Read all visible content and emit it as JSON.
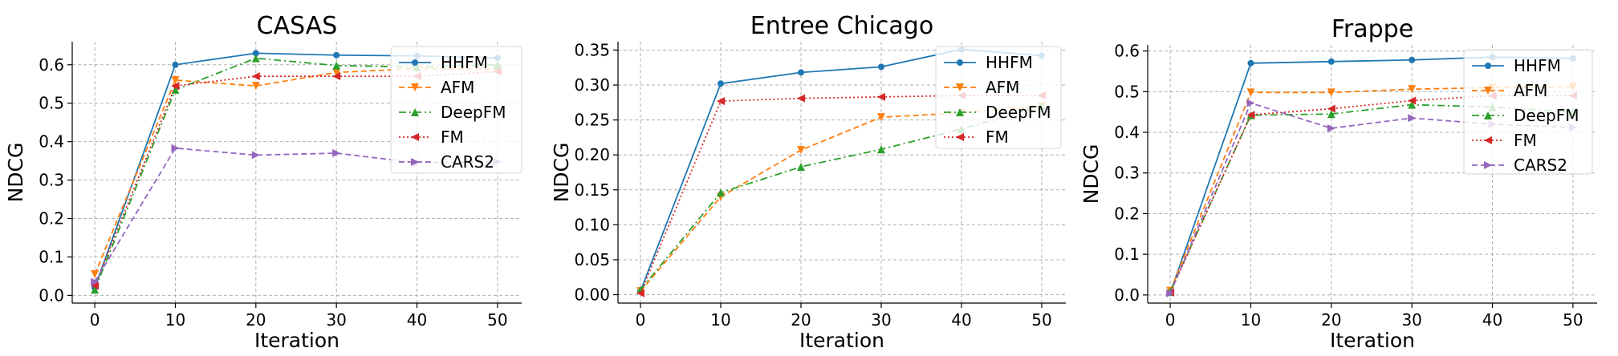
{
  "chart_data": [
    {
      "type": "line",
      "title": "CASAS",
      "xlabel": "Iteration",
      "ylabel": "NDCG",
      "x": [
        0,
        10,
        20,
        30,
        40,
        50
      ],
      "xticks": [
        "0",
        "10",
        "20",
        "30",
        "40",
        "50"
      ],
      "ylim": [
        -0.02,
        0.66
      ],
      "yticks": [
        0.0,
        0.1,
        0.2,
        0.3,
        0.4,
        0.5,
        0.6
      ],
      "ytick_labels": [
        "0.0",
        "0.1",
        "0.2",
        "0.3",
        "0.4",
        "0.5",
        "0.6"
      ],
      "grid": true,
      "legend_position": "top-right",
      "series": [
        {
          "name": "HHFM",
          "values": [
            0.02,
            0.6,
            0.63,
            0.625,
            0.623,
            0.618
          ],
          "color": "#1f77b4",
          "dash": "solid",
          "marker": "circle"
        },
        {
          "name": "AFM",
          "values": [
            0.055,
            0.56,
            0.545,
            0.58,
            0.59,
            0.588
          ],
          "color": "#ff7f0e",
          "dash": "dashed",
          "marker": "triangle-down"
        },
        {
          "name": "DeepFM",
          "values": [
            0.015,
            0.535,
            0.617,
            0.598,
            0.594,
            0.6
          ],
          "color": "#2ca02c",
          "dash": "dashdot",
          "marker": "triangle-up"
        },
        {
          "name": "FM",
          "values": [
            0.025,
            0.545,
            0.57,
            0.57,
            0.57,
            0.582
          ],
          "color": "#d62728",
          "dash": "dotted",
          "marker": "triangle-left"
        },
        {
          "name": "CARS2",
          "values": [
            0.035,
            0.383,
            0.365,
            0.37,
            0.345,
            0.348
          ],
          "color": "#9467bd",
          "dash": "dashed",
          "marker": "triangle-right"
        }
      ]
    },
    {
      "type": "line",
      "title": "Entree Chicago",
      "xlabel": "Iteration",
      "ylabel": "NDCG",
      "x": [
        0,
        10,
        20,
        30,
        40,
        50
      ],
      "xticks": [
        "0",
        "10",
        "20",
        "30",
        "40",
        "50"
      ],
      "ylim": [
        -0.012,
        0.362
      ],
      "yticks": [
        0.0,
        0.05,
        0.1,
        0.15,
        0.2,
        0.25,
        0.3,
        0.35
      ],
      "ytick_labels": [
        "0.00",
        "0.05",
        "0.10",
        "0.15",
        "0.20",
        "0.25",
        "0.30",
        "0.35"
      ],
      "grid": true,
      "legend_position": "top-right",
      "series": [
        {
          "name": "HHFM",
          "values": [
            0.005,
            0.302,
            0.318,
            0.326,
            0.351,
            0.342
          ],
          "color": "#1f77b4",
          "dash": "solid",
          "marker": "circle"
        },
        {
          "name": "AFM",
          "values": [
            0.005,
            0.14,
            0.207,
            0.254,
            0.26,
            0.27
          ],
          "color": "#ff7f0e",
          "dash": "dashed",
          "marker": "triangle-down"
        },
        {
          "name": "DeepFM",
          "values": [
            0.007,
            0.146,
            0.183,
            0.208,
            0.237,
            0.27
          ],
          "color": "#2ca02c",
          "dash": "dashdot",
          "marker": "triangle-up"
        },
        {
          "name": "FM",
          "values": [
            0.002,
            0.277,
            0.281,
            0.283,
            0.285,
            0.285
          ],
          "color": "#d62728",
          "dash": "dotted",
          "marker": "triangle-left"
        }
      ]
    },
    {
      "type": "line",
      "title": "Frappe",
      "xlabel": "Iteration",
      "ylabel": "NDCG",
      "x": [
        0,
        10,
        20,
        30,
        40,
        50
      ],
      "xticks": [
        "0",
        "10",
        "20",
        "30",
        "40",
        "50"
      ],
      "ylim": [
        -0.02,
        0.615
      ],
      "yticks": [
        0.0,
        0.1,
        0.2,
        0.3,
        0.4,
        0.5,
        0.6
      ],
      "ytick_labels": [
        "0.0",
        "0.1",
        "0.2",
        "0.3",
        "0.4",
        "0.5",
        "0.6"
      ],
      "grid": true,
      "legend_position": "top-right",
      "series": [
        {
          "name": "HHFM",
          "values": [
            0.005,
            0.57,
            0.574,
            0.578,
            0.585,
            0.582
          ],
          "color": "#1f77b4",
          "dash": "solid",
          "marker": "circle"
        },
        {
          "name": "AFM",
          "values": [
            0.01,
            0.498,
            0.498,
            0.506,
            0.51,
            0.512
          ],
          "color": "#ff7f0e",
          "dash": "dashed",
          "marker": "triangle-down"
        },
        {
          "name": "DeepFM",
          "values": [
            0.008,
            0.442,
            0.445,
            0.468,
            0.462,
            0.45
          ],
          "color": "#2ca02c",
          "dash": "dashdot",
          "marker": "triangle-up"
        },
        {
          "name": "FM",
          "values": [
            0.006,
            0.443,
            0.458,
            0.478,
            0.49,
            0.49
          ],
          "color": "#d62728",
          "dash": "dotted",
          "marker": "triangle-left"
        },
        {
          "name": "CARS2",
          "values": [
            0.004,
            0.472,
            0.41,
            0.435,
            0.42,
            0.412
          ],
          "color": "#9467bd",
          "dash": "dashed",
          "marker": "triangle-right"
        }
      ]
    }
  ]
}
